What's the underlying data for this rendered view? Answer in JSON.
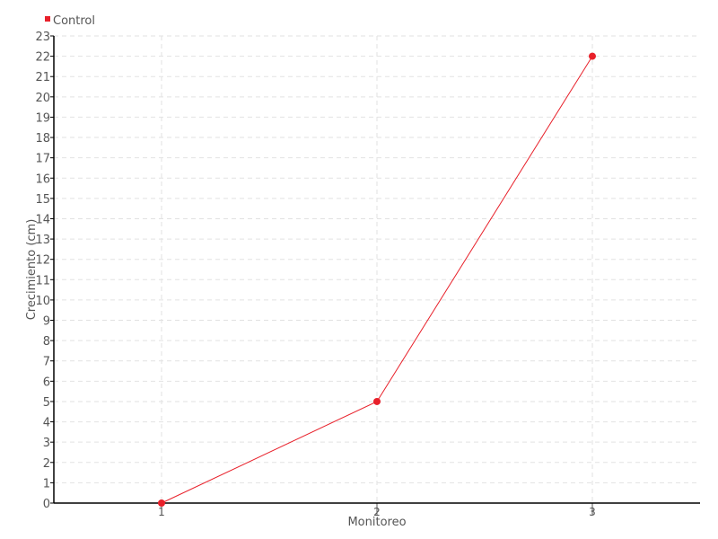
{
  "chart_data": {
    "type": "line",
    "title": "",
    "xlabel": "Monitoreo",
    "ylabel": "Crecimiento (cm)",
    "x": [
      1,
      2,
      3
    ],
    "xlim": [
      0.5,
      3.5
    ],
    "ylim": [
      0,
      23
    ],
    "yticks": [
      0,
      1,
      2,
      3,
      4,
      5,
      6,
      7,
      8,
      9,
      10,
      11,
      12,
      13,
      14,
      15,
      16,
      17,
      18,
      19,
      20,
      21,
      22,
      23
    ],
    "xticks": [
      1,
      2,
      3
    ],
    "grid": true,
    "legend": "top-left",
    "series": [
      {
        "name": "Control",
        "values": [
          0,
          5,
          22
        ],
        "color": "#e8202a"
      }
    ]
  }
}
